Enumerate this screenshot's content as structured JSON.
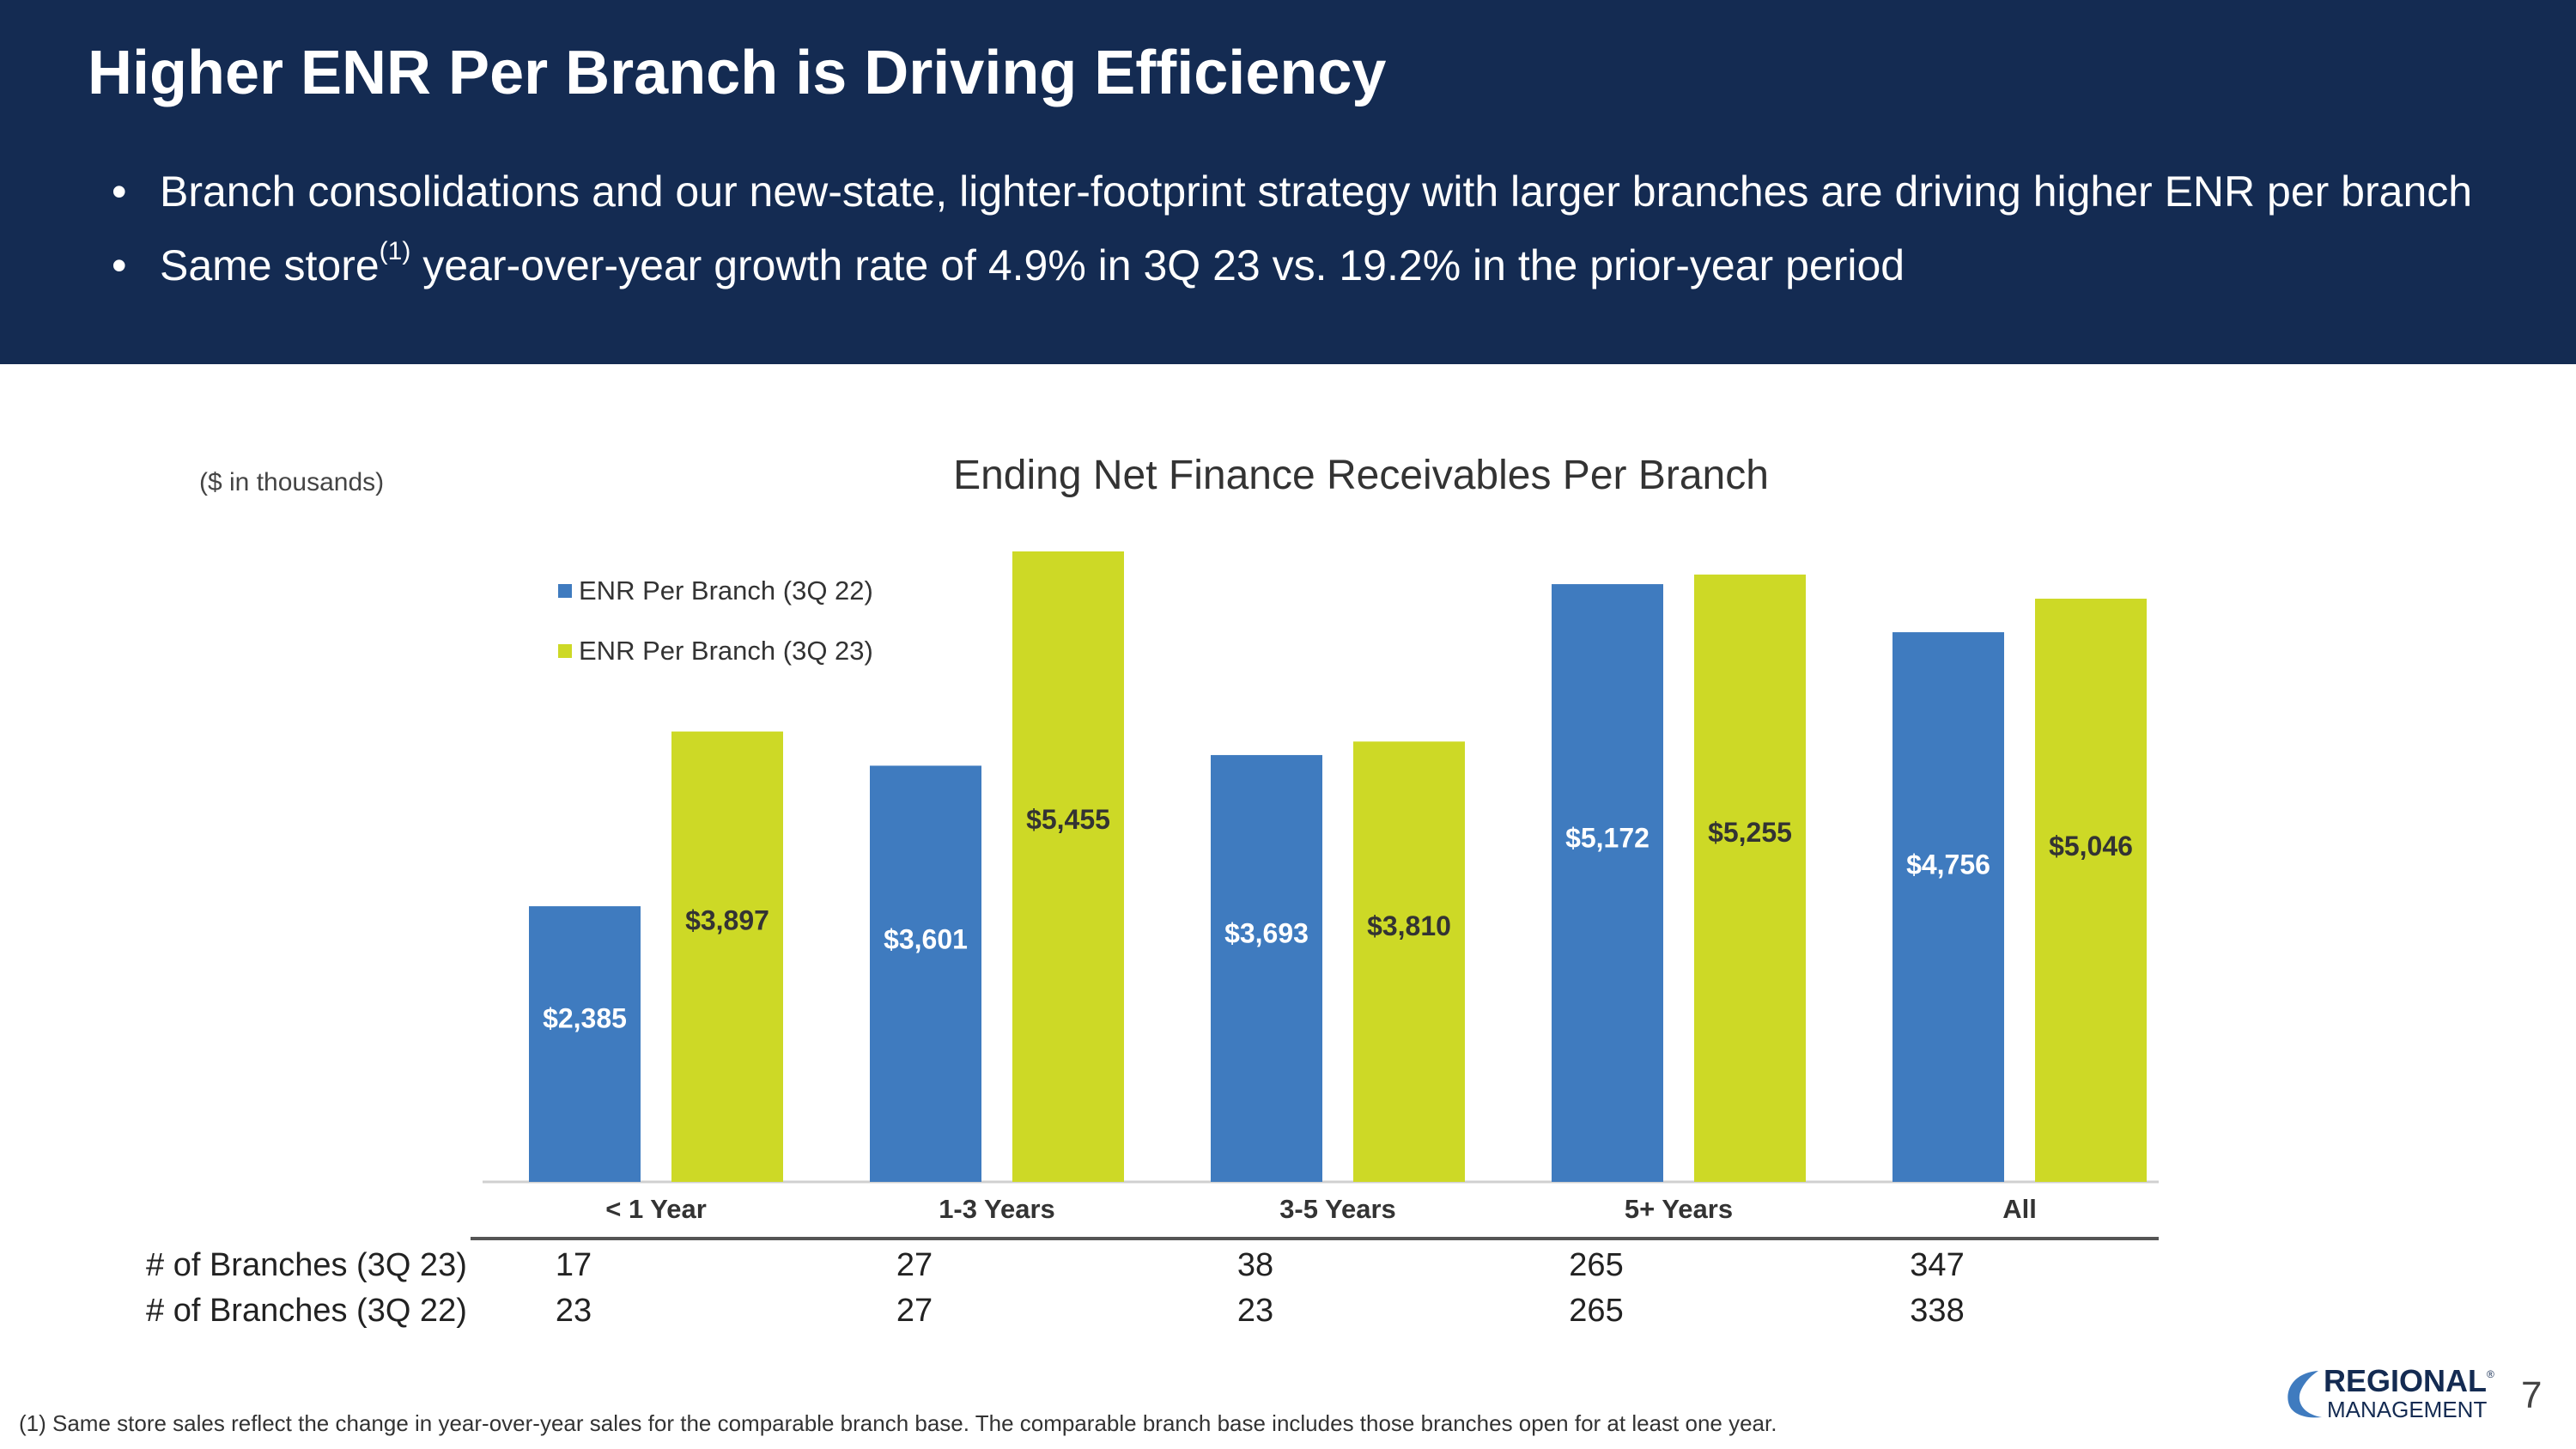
{
  "header": {
    "title": "Higher ENR Per Branch is Driving Efficiency",
    "bullet1": "Branch consolidations and our new-state, lighter-footprint strategy with larger branches are driving higher ENR per branch",
    "bullet2_pre": "Same store",
    "bullet2_sup": "(1)",
    "bullet2_post": " year-over-year growth rate of 4.9% in 3Q 23 vs. 19.2% in the prior-year period"
  },
  "colors": {
    "header_bg": "#142b52",
    "series_3q22": "#3f7bbf",
    "series_3q23": "#cdd926"
  },
  "chart_data": {
    "type": "bar",
    "title": "Ending Net Finance Receivables Per Branch",
    "units_note": "($ in thousands)",
    "categories": [
      "< 1 Year",
      "1-3 Years",
      "3-5 Years",
      "5+ Years",
      "All"
    ],
    "series": [
      {
        "name": "ENR Per Branch (3Q 22)",
        "values": [
          2385,
          3601,
          3693,
          5172,
          4756
        ],
        "labels": [
          "$2,385",
          "$3,601",
          "$3,693",
          "$5,172",
          "$4,756"
        ]
      },
      {
        "name": "ENR Per Branch (3Q 23)",
        "values": [
          3897,
          5455,
          3810,
          5255,
          5046
        ],
        "labels": [
          "$3,897",
          "$5,455",
          "$3,810",
          "$5,255",
          "$5,046"
        ]
      }
    ],
    "ylim": [
      0,
      5455
    ],
    "legend_position": "top-left"
  },
  "branch_table": {
    "rows": [
      {
        "label": "# of Branches (3Q 23)",
        "values": [
          "17",
          "27",
          "38",
          "265",
          "347"
        ]
      },
      {
        "label": "# of Branches (3Q 22)",
        "values": [
          "23",
          "27",
          "23",
          "265",
          "338"
        ]
      }
    ]
  },
  "footnote": "(1)  Same store sales reflect the change in year-over-year sales for the comparable branch base. The comparable branch base includes those branches open for at least one year.",
  "logo": {
    "line1": "REGIONAL",
    "line2": "MANAGEMENT",
    "mark": "®"
  },
  "page_number": "7"
}
